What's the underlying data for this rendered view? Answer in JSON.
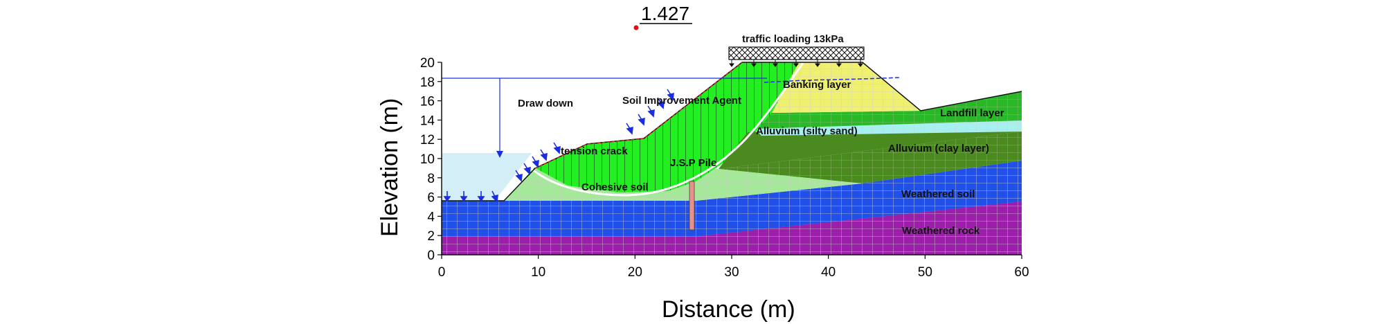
{
  "factor_of_safety": "1.427",
  "load_label": "traffic loading 13kPa",
  "axes": {
    "xlabel": "Distance (m)",
    "ylabel": "Elevation (m)",
    "xlim": [
      0,
      60
    ],
    "ylim": [
      0,
      20
    ],
    "xticks": [
      "0",
      "10",
      "20",
      "30",
      "40",
      "50",
      "60"
    ],
    "yticks": [
      "0",
      "2",
      "4",
      "6",
      "8",
      "10",
      "12",
      "14",
      "16",
      "18",
      "20"
    ]
  },
  "labels": {
    "draw_down": "Draw down",
    "soil_improvement_agent": "Soil Improvement Agent",
    "tension_crack": "tension crack",
    "jsp_pile": "J.S.P Pile",
    "cohesive_soil": "Cohesive soil",
    "banking_layer": "Banking layer",
    "landfill_layer": "Landfill layer",
    "alluvium_silty_sand": "Alluvium (silty sand)",
    "alluvium_clay_layer": "Alluvium (clay layer)",
    "weathered_soil": "Weathered soil",
    "weathered_rock": "Weathered rock"
  },
  "colors": {
    "weathered_rock": "#9b1fa8",
    "weathered_soil": "#2050e8",
    "cohesive_soil": "#a6e89a",
    "clay_layer": "#4a8a1e",
    "silty_sand": "#a8f0f0",
    "landfill": "#28b828",
    "banking": "#f0f070",
    "improvement_agent": "#22ee22",
    "water": "#d4eef8",
    "arrows": "#1a2ee0",
    "pile": "#e8908a",
    "mesh": "#cfcfcf"
  }
}
